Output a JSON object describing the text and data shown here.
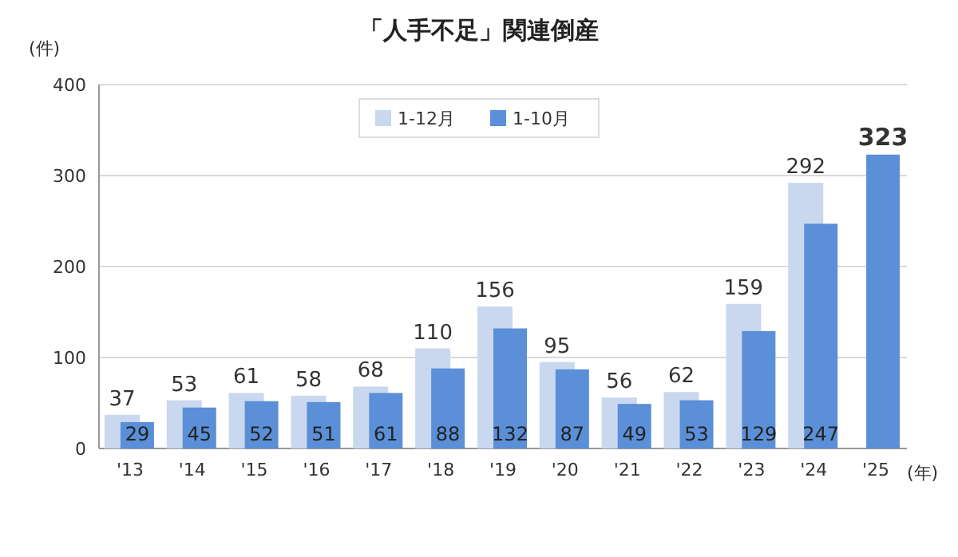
{
  "chart_data": {
    "type": "bar",
    "title": "「人手不足」関連倒産",
    "ylabel": "(件)",
    "xlabel": "(年)",
    "categories": [
      "'13",
      "'14",
      "'15",
      "'16",
      "'17",
      "'18",
      "'19",
      "'20",
      "'21",
      "'22",
      "'23",
      "'24",
      "'25"
    ],
    "series": [
      {
        "name": "1-12月",
        "color": "#c9d8ee",
        "values": [
          37,
          53,
          61,
          58,
          68,
          110,
          156,
          95,
          56,
          62,
          159,
          292,
          null
        ]
      },
      {
        "name": "1-10月",
        "color": "#5b8fd8",
        "values": [
          29,
          45,
          52,
          51,
          61,
          88,
          132,
          87,
          49,
          53,
          129,
          247,
          323
        ]
      }
    ],
    "ylim": [
      0,
      400
    ],
    "yticks": [
      0,
      100,
      200,
      300,
      400
    ],
    "grid": "y",
    "legend": "top",
    "data_labels": true
  }
}
